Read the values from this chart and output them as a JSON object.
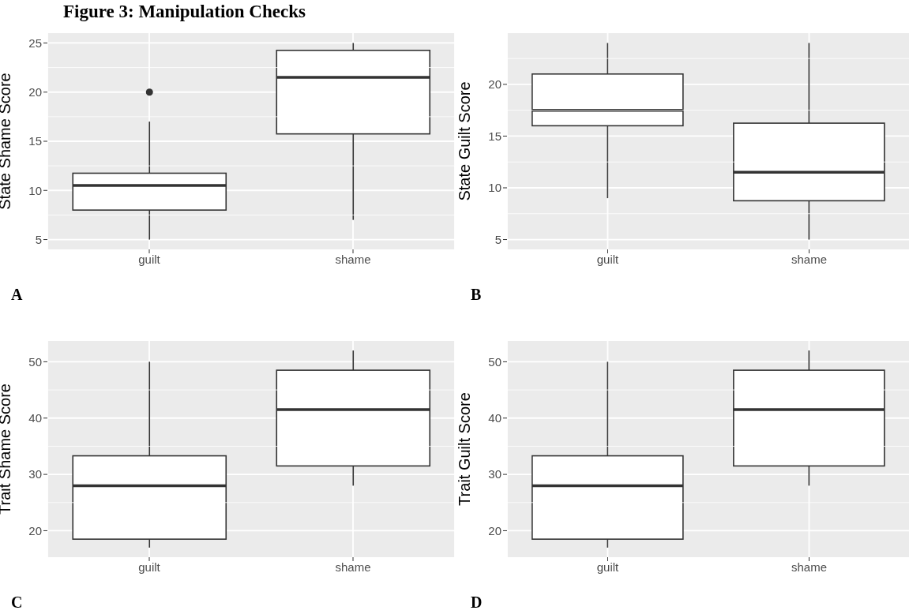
{
  "chart_data": [
    {
      "type": "box",
      "title": "Figure 3: Manipulation Checks",
      "ylabel": "State Shame Score",
      "categories": [
        "guilt",
        "shame"
      ],
      "boxes": [
        {
          "low": 5,
          "q1": 8,
          "median": 10.5,
          "q3": 11.75,
          "high": 17,
          "outliers": [
            20
          ]
        },
        {
          "low": 7,
          "q1": 15.75,
          "median": 21.5,
          "q3": 24.25,
          "high": 25
        }
      ],
      "ylim": [
        4,
        26
      ],
      "yticks": [
        5,
        10,
        15,
        20,
        25
      ],
      "grid": true,
      "annotations": [
        "A"
      ]
    },
    {
      "type": "box",
      "ylabel": "State Guilt Score",
      "categories": [
        "guilt",
        "shame"
      ],
      "boxes": [
        {
          "low": 9,
          "q1": 16,
          "median": 17.5,
          "q3": 21,
          "high": 24
        },
        {
          "low": 5,
          "q1": 8.75,
          "median": 11.5,
          "q3": 16.25,
          "high": 24
        }
      ],
      "ylim": [
        4.05,
        24.95
      ],
      "yticks": [
        5,
        10,
        15,
        20
      ],
      "grid": true,
      "annotations": [
        "B"
      ]
    },
    {
      "type": "box",
      "ylabel": "Trait Shame Score",
      "categories": [
        "guilt",
        "shame"
      ],
      "boxes": [
        {
          "low": 17,
          "q1": 18.5,
          "median": 28,
          "q3": 33.3,
          "high": 50
        },
        {
          "low": 28,
          "q1": 31.5,
          "median": 41.5,
          "q3": 48.5,
          "high": 52
        }
      ],
      "ylim": [
        15.3,
        53.7
      ],
      "yticks": [
        20,
        30,
        40,
        50
      ],
      "grid": true,
      "annotations": [
        "C"
      ]
    },
    {
      "type": "box",
      "ylabel": "Trait Guilt Score",
      "categories": [
        "guilt",
        "shame"
      ],
      "boxes": [
        {
          "low": 17,
          "q1": 18.5,
          "median": 28,
          "q3": 33.3,
          "high": 50
        },
        {
          "low": 28,
          "q1": 31.5,
          "median": 41.5,
          "q3": 48.5,
          "high": 52
        }
      ],
      "ylim": [
        15.3,
        53.7
      ],
      "yticks": [
        20,
        30,
        40,
        50
      ],
      "grid": true,
      "annotations": [
        "D"
      ]
    }
  ]
}
